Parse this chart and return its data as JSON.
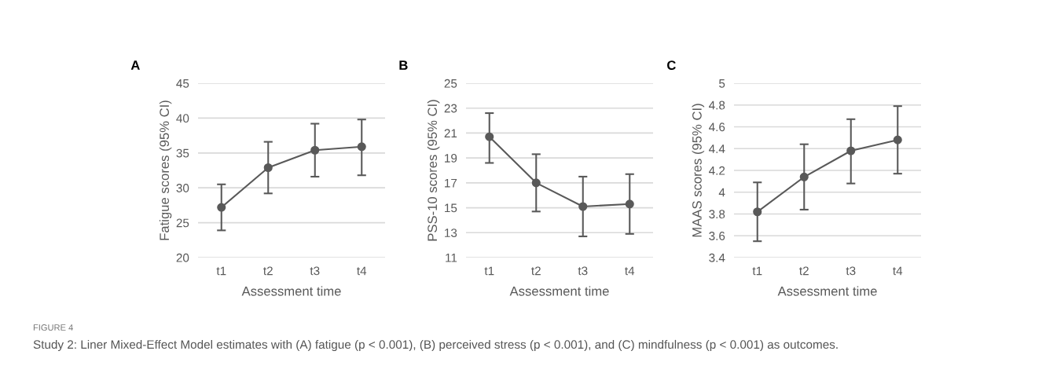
{
  "chart_data": [
    {
      "type": "line",
      "title": "A",
      "xlabel": "Assessment time",
      "ylabel": "Fatigue scores (95% CI)",
      "categories": [
        "t1",
        "t2",
        "t3",
        "t4"
      ],
      "series": [
        {
          "color": "#595959",
          "values": [
            27.2,
            32.9,
            35.4,
            35.9
          ],
          "errors": [
            [
              23.9,
              30.5
            ],
            [
              29.2,
              36.6
            ],
            [
              31.6,
              39.2
            ],
            [
              31.8,
              39.8
            ]
          ]
        }
      ],
      "ylim": [
        20,
        45
      ],
      "yticks": [
        20,
        25,
        30,
        35,
        40,
        45
      ],
      "grid": "y",
      "marker": "circle",
      "line_style": "solid",
      "annotations": [
        "FIGURE 4",
        "Study 2: Liner Mixed-Effect Model estimates with (A) fatigue (p < 0.001), (B) perceived stress (p < 0.001), and (C) mindfulness (p < 0.001) as outcomes."
      ]
    },
    {
      "type": "line",
      "title": "B",
      "xlabel": "Assessment time",
      "ylabel": "PSS-10 scores (95% CI)",
      "categories": [
        "t1",
        "t2",
        "t3",
        "t4"
      ],
      "series": [
        {
          "color": "#595959",
          "values": [
            20.7,
            17.0,
            15.1,
            15.3
          ],
          "errors": [
            [
              18.6,
              22.6
            ],
            [
              14.7,
              19.3
            ],
            [
              12.7,
              17.5
            ],
            [
              12.9,
              17.7
            ]
          ]
        }
      ],
      "ylim": [
        11,
        25
      ],
      "yticks": [
        11,
        13,
        15,
        17,
        19,
        21,
        23,
        25
      ],
      "grid": "y",
      "marker": "circle",
      "line_style": "solid"
    },
    {
      "type": "line",
      "title": "C",
      "xlabel": "Assessment time",
      "ylabel": "MAAS scores (95% CI)",
      "categories": [
        "t1",
        "t2",
        "t3",
        "t4"
      ],
      "series": [
        {
          "color": "#595959",
          "values": [
            3.82,
            4.14,
            4.38,
            4.48
          ],
          "errors": [
            [
              3.55,
              4.09
            ],
            [
              3.84,
              4.44
            ],
            [
              4.08,
              4.67
            ],
            [
              4.17,
              4.79
            ]
          ]
        }
      ],
      "ylim": [
        3.4,
        5
      ],
      "yticks": [
        3.4,
        3.6,
        3.8,
        4,
        4.2,
        4.4,
        4.6,
        4.8,
        5
      ],
      "grid": "y",
      "marker": "circle",
      "line_style": "solid"
    }
  ]
}
